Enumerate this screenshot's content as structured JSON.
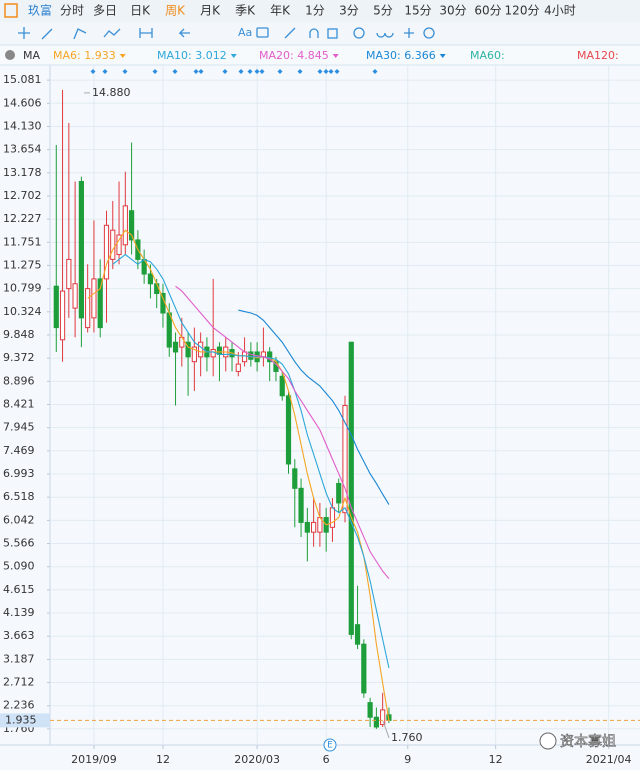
{
  "toolbar": {
    "periods": [
      "玖富",
      "分时",
      "多日",
      "日K",
      "周K",
      "月K",
      "季K",
      "年K",
      "1分",
      "3分",
      "5分",
      "15分",
      "30分",
      "60分",
      "120分",
      "4小时"
    ],
    "tools_text": "Aa"
  },
  "indicator": "MA",
  "watermark": "资本寡姐",
  "marker_label": "E",
  "chart_data": {
    "type": "candlestick",
    "categories": [
      null,
      null,
      null,
      null,
      null,
      null,
      null,
      null,
      null,
      null,
      null,
      null,
      null,
      null,
      null,
      null,
      null,
      null,
      null,
      null,
      null,
      null,
      null,
      null,
      null,
      null,
      null,
      null,
      null,
      null,
      null,
      null,
      null,
      null,
      null,
      null,
      null,
      null,
      null,
      null,
      null,
      null,
      null,
      null,
      null,
      null,
      null,
      null,
      null,
      null,
      null,
      null,
      null,
      null
    ],
    "open": [
      10.85,
      9.75,
      10.8,
      10.4,
      13.0,
      10.0,
      10.2,
      11.0,
      11.0,
      11.4,
      11.5,
      11.7,
      12.4,
      11.8,
      11.4,
      11.1,
      10.9,
      10.7,
      10.3,
      9.7,
      9.6,
      9.7,
      9.3,
      9.4,
      9.6,
      9.4,
      9.6,
      9.4,
      9.55,
      9.1,
      9.3,
      9.5,
      9.5,
      9.4,
      9.5,
      9.3,
      9.0,
      8.6,
      7.1,
      6.7,
      6.0,
      5.8,
      5.8,
      6.1,
      5.9,
      6.8,
      6.2,
      9.7,
      3.9,
      3.5,
      2.3,
      2.0,
      1.85,
      2.05
    ],
    "high": [
      13.75,
      14.88,
      14.2,
      13.0,
      13.1,
      11.3,
      12.2,
      11.4,
      12.4,
      12.6,
      13.0,
      13.2,
      13.8,
      12.0,
      11.6,
      11.3,
      11.0,
      10.9,
      10.5,
      9.9,
      10.2,
      9.9,
      10.0,
      9.9,
      9.8,
      11.0,
      9.7,
      9.8,
      9.7,
      9.5,
      9.8,
      9.7,
      9.7,
      10.0,
      9.6,
      9.4,
      9.1,
      8.7,
      7.3,
      6.9,
      6.3,
      6.5,
      6.4,
      6.3,
      6.5,
      6.9,
      8.6,
      9.7,
      4.7,
      3.6,
      2.4,
      2.2,
      2.5,
      2.2
    ],
    "low": [
      9.5,
      9.3,
      10.2,
      9.8,
      9.6,
      9.9,
      9.9,
      9.8,
      10.1,
      11.2,
      11.3,
      11.5,
      11.5,
      11.2,
      10.9,
      10.6,
      10.4,
      10.0,
      9.4,
      8.4,
      9.2,
      8.6,
      8.7,
      9.0,
      9.1,
      9.0,
      8.9,
      9.1,
      9.1,
      9.0,
      9.2,
      9.2,
      9.1,
      9.2,
      8.9,
      8.9,
      8.5,
      7.0,
      5.9,
      5.7,
      5.2,
      5.5,
      5.5,
      5.4,
      5.6,
      6.2,
      6.0,
      3.6,
      3.4,
      2.4,
      1.8,
      1.76,
      1.8,
      1.88
    ],
    "close": [
      10.0,
      10.75,
      11.4,
      10.9,
      10.2,
      10.8,
      11.0,
      10.0,
      12.1,
      12.0,
      11.9,
      12.5,
      11.8,
      11.4,
      11.1,
      10.9,
      10.7,
      10.3,
      9.6,
      9.5,
      9.8,
      9.4,
      9.6,
      9.7,
      9.4,
      9.55,
      9.45,
      9.6,
      9.4,
      9.25,
      9.5,
      9.35,
      9.3,
      9.5,
      9.3,
      9.1,
      8.6,
      7.2,
      6.7,
      6.0,
      5.8,
      6.0,
      6.1,
      5.8,
      6.3,
      6.4,
      8.4,
      3.7,
      3.5,
      2.5,
      2.0,
      1.8,
      2.15,
      1.935
    ],
    "up_color": "#e0393e",
    "down_color": "#1e9e3a",
    "ma": [
      {
        "name": "MA6",
        "label": "MA6: 1.933",
        "color": "#f5a524",
        "values": [
          null,
          null,
          null,
          null,
          null,
          10.6,
          10.7,
          10.8,
          11.3,
          11.6,
          11.8,
          12.0,
          11.9,
          11.6,
          11.4,
          11.2,
          10.9,
          10.6,
          10.3,
          10.0,
          9.8,
          9.6,
          9.55,
          9.5,
          9.5,
          9.5,
          9.5,
          9.5,
          9.48,
          9.42,
          9.42,
          9.4,
          9.38,
          9.4,
          9.38,
          9.3,
          9.1,
          8.7,
          8.2,
          7.6,
          7.0,
          6.5,
          6.1,
          5.95,
          6.0,
          6.1,
          6.5,
          6.1,
          5.8,
          5.3,
          4.5,
          3.5,
          2.7,
          1.933
        ]
      },
      {
        "name": "MA10",
        "label": "MA10: 3.012",
        "color": "#2ea7d8",
        "values": [
          null,
          null,
          null,
          null,
          null,
          null,
          null,
          null,
          null,
          11.3,
          11.4,
          11.5,
          11.4,
          11.3,
          11.4,
          11.35,
          11.2,
          11.0,
          10.7,
          10.4,
          10.1,
          9.9,
          9.7,
          9.6,
          9.5,
          9.5,
          9.45,
          9.45,
          9.45,
          9.42,
          9.42,
          9.4,
          9.4,
          9.4,
          9.38,
          9.35,
          9.25,
          9.05,
          8.7,
          8.3,
          7.8,
          7.4,
          7.0,
          6.6,
          6.3,
          6.2,
          6.3,
          6.0,
          5.7,
          5.3,
          4.8,
          4.2,
          3.6,
          3.012
        ]
      },
      {
        "name": "MA20",
        "label": "MA20: 4.845",
        "color": "#e25ccb",
        "values": [
          null,
          null,
          null,
          null,
          null,
          null,
          null,
          null,
          null,
          null,
          null,
          null,
          null,
          null,
          null,
          null,
          null,
          null,
          null,
          10.85,
          10.75,
          10.6,
          10.45,
          10.3,
          10.15,
          10.0,
          9.9,
          9.8,
          9.7,
          9.6,
          9.5,
          9.45,
          9.42,
          9.4,
          9.35,
          9.25,
          9.1,
          8.95,
          8.7,
          8.5,
          8.3,
          8.1,
          7.9,
          7.6,
          7.3,
          7.0,
          6.7,
          6.3,
          6.0,
          5.7,
          5.4,
          5.2,
          5.0,
          4.845
        ]
      },
      {
        "name": "MA30",
        "label": "MA30: 6.366",
        "color": "#1b87d4",
        "values": [
          null,
          null,
          null,
          null,
          null,
          null,
          null,
          null,
          null,
          null,
          null,
          null,
          null,
          null,
          null,
          null,
          null,
          null,
          null,
          null,
          null,
          null,
          null,
          null,
          null,
          null,
          null,
          null,
          null,
          10.36,
          10.33,
          10.3,
          10.25,
          10.15,
          10.0,
          9.85,
          9.7,
          9.5,
          9.3,
          9.13,
          9.0,
          8.9,
          8.8,
          8.65,
          8.5,
          8.3,
          8.05,
          7.8,
          7.5,
          7.25,
          7.0,
          6.8,
          6.58,
          6.366
        ]
      },
      {
        "name": "MA60",
        "label": "MA60:",
        "color": "#2bb3a3"
      },
      {
        "name": "MA120",
        "label": "MA120:",
        "color": "#e5484d"
      }
    ],
    "ylim": [
      1.43,
      15.33
    ],
    "yticks": [
      15.081,
      14.606,
      {
        "value": 14.13,
        "label": "14.130"
      },
      13.654,
      13.178,
      12.702,
      12.227,
      11.751,
      11.275,
      10.799,
      10.324,
      9.848,
      9.372,
      8.896,
      8.421,
      7.945,
      7.469,
      6.993,
      6.518,
      6.042,
      5.566,
      {
        "value": 5.09,
        "label": "5.090"
      },
      4.615,
      4.139,
      3.663,
      3.187,
      2.712,
      2.236,
      {
        "value": 1.76,
        "label": "1.760"
      }
    ],
    "xlim": [
      -1,
      93
    ],
    "xticks": [
      {
        "value": 6,
        "label": "2019/09"
      },
      {
        "value": 17,
        "label": "12"
      },
      {
        "value": 32,
        "label": "2020/03"
      },
      {
        "value": 43,
        "label": "6"
      },
      {
        "value": 56,
        "label": "9"
      },
      {
        "value": 70,
        "label": "12"
      },
      {
        "value": 88,
        "label": "2021/04"
      }
    ],
    "grid": true,
    "current_price": 1.935,
    "annotations": [
      {
        "label": "14.880",
        "value": 14.88
      },
      {
        "label": "1.760",
        "value": 1.76
      }
    ]
  }
}
